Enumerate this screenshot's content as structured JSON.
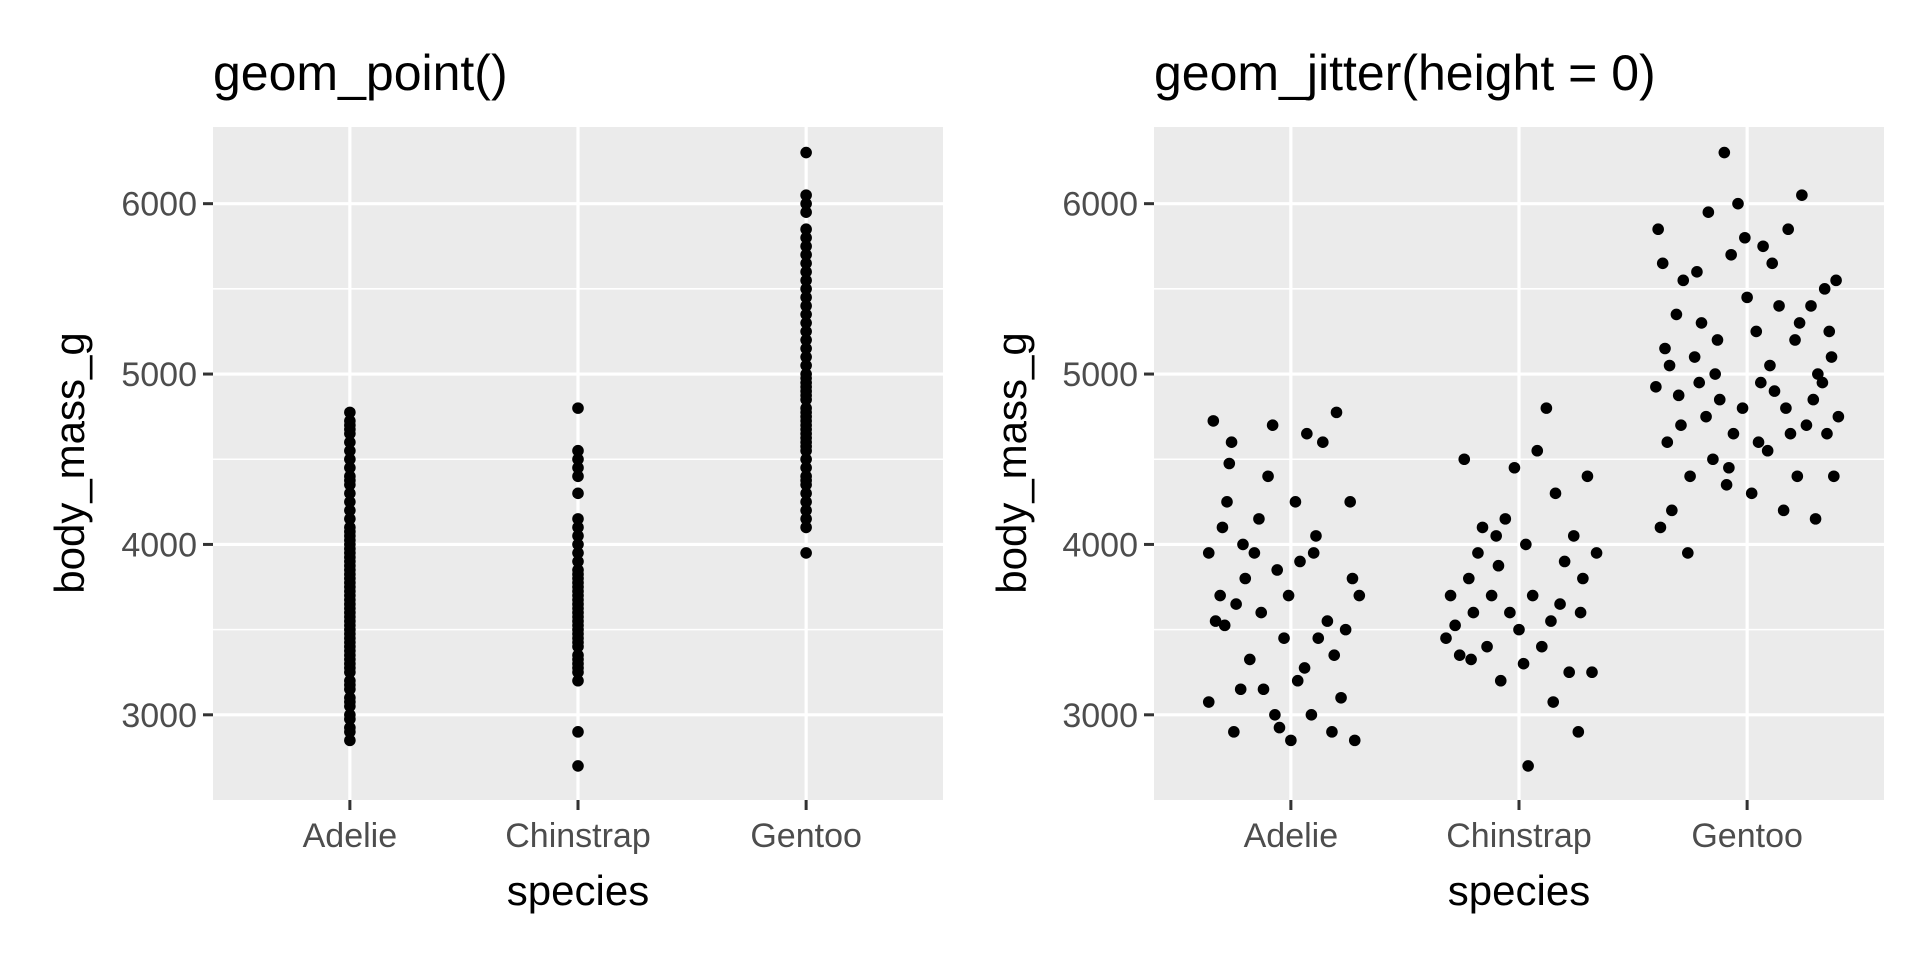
{
  "chart_data": [
    {
      "type": "scatter",
      "title": "geom_point()",
      "xlabel": "species",
      "ylabel": "body_mass_g",
      "categories": [
        "Adelie",
        "Chinstrap",
        "Gentoo"
      ],
      "yticks": [
        3000,
        4000,
        5000,
        6000
      ],
      "ylim": [
        2500,
        6450
      ],
      "grid": true,
      "legend": "none",
      "point_color": "#000000",
      "panel_color": "#ebebeb",
      "points": {
        "Adelie": [
          2850,
          2900,
          2925,
          2975,
          3000,
          3050,
          3075,
          3100,
          3150,
          3175,
          3200,
          3250,
          3275,
          3300,
          3325,
          3350,
          3375,
          3400,
          3425,
          3450,
          3475,
          3500,
          3525,
          3550,
          3575,
          3600,
          3625,
          3650,
          3675,
          3700,
          3725,
          3750,
          3775,
          3800,
          3825,
          3850,
          3875,
          3900,
          3925,
          3950,
          3975,
          4000,
          4025,
          4050,
          4075,
          4100,
          4150,
          4200,
          4250,
          4300,
          4350,
          4375,
          4400,
          4450,
          4500,
          4550,
          4600,
          4650,
          4675,
          4700,
          4725,
          4775
        ],
        "Chinstrap": [
          2700,
          2900,
          3200,
          3250,
          3275,
          3300,
          3325,
          3350,
          3400,
          3425,
          3450,
          3475,
          3500,
          3525,
          3550,
          3575,
          3600,
          3625,
          3650,
          3675,
          3700,
          3725,
          3750,
          3775,
          3800,
          3825,
          3850,
          3900,
          3950,
          4000,
          4050,
          4100,
          4150,
          4300,
          4400,
          4450,
          4500,
          4550,
          4800
        ],
        "Gentoo": [
          3950,
          4100,
          4150,
          4200,
          4250,
          4300,
          4350,
          4375,
          4400,
          4450,
          4500,
          4550,
          4575,
          4600,
          4625,
          4650,
          4675,
          4700,
          4725,
          4750,
          4775,
          4800,
          4850,
          4875,
          4900,
          4925,
          4950,
          4975,
          5000,
          5050,
          5100,
          5150,
          5200,
          5250,
          5300,
          5350,
          5400,
          5450,
          5500,
          5550,
          5600,
          5650,
          5700,
          5750,
          5800,
          5850,
          5950,
          6000,
          6050,
          6300
        ]
      }
    },
    {
      "type": "scatter",
      "title": "geom_jitter(height = 0)",
      "xlabel": "species",
      "ylabel": "body_mass_g",
      "categories": [
        "Adelie",
        "Chinstrap",
        "Gentoo"
      ],
      "yticks": [
        3000,
        4000,
        5000,
        6000
      ],
      "ylim": [
        2500,
        6450
      ],
      "grid": true,
      "legend": "none",
      "point_color": "#000000",
      "panel_color": "#ebebeb",
      "points": [
        {
          "x": 0.64,
          "y": 3950
        },
        {
          "x": 0.66,
          "y": 4725
        },
        {
          "x": 0.64,
          "y": 3075
        },
        {
          "x": 0.67,
          "y": 3550
        },
        {
          "x": 0.69,
          "y": 3700
        },
        {
          "x": 0.7,
          "y": 4100
        },
        {
          "x": 0.72,
          "y": 4250
        },
        {
          "x": 0.74,
          "y": 4600
        },
        {
          "x": 0.73,
          "y": 4475
        },
        {
          "x": 0.75,
          "y": 2900
        },
        {
          "x": 0.76,
          "y": 3650
        },
        {
          "x": 0.78,
          "y": 3150
        },
        {
          "x": 0.8,
          "y": 3800
        },
        {
          "x": 0.82,
          "y": 3325
        },
        {
          "x": 0.84,
          "y": 3950
        },
        {
          "x": 0.86,
          "y": 4150
        },
        {
          "x": 0.88,
          "y": 3150
        },
        {
          "x": 0.9,
          "y": 4400
        },
        {
          "x": 0.92,
          "y": 4700
        },
        {
          "x": 0.93,
          "y": 3000
        },
        {
          "x": 0.95,
          "y": 2925
        },
        {
          "x": 0.97,
          "y": 3450
        },
        {
          "x": 0.99,
          "y": 3700
        },
        {
          "x": 1.0,
          "y": 2850
        },
        {
          "x": 1.02,
          "y": 4250
        },
        {
          "x": 1.04,
          "y": 3900
        },
        {
          "x": 1.06,
          "y": 3275
        },
        {
          "x": 1.07,
          "y": 4650
        },
        {
          "x": 1.09,
          "y": 3000
        },
        {
          "x": 1.1,
          "y": 3950
        },
        {
          "x": 1.12,
          "y": 3450
        },
        {
          "x": 1.14,
          "y": 4600
        },
        {
          "x": 1.16,
          "y": 3550
        },
        {
          "x": 1.18,
          "y": 2900
        },
        {
          "x": 1.2,
          "y": 4775
        },
        {
          "x": 1.22,
          "y": 3100
        },
        {
          "x": 1.24,
          "y": 3500
        },
        {
          "x": 1.26,
          "y": 4250
        },
        {
          "x": 1.28,
          "y": 2850
        },
        {
          "x": 1.3,
          "y": 3700
        },
        {
          "x": 0.71,
          "y": 3525
        },
        {
          "x": 0.79,
          "y": 4000
        },
        {
          "x": 0.87,
          "y": 3600
        },
        {
          "x": 0.94,
          "y": 3850
        },
        {
          "x": 1.03,
          "y": 3200
        },
        {
          "x": 1.11,
          "y": 4050
        },
        {
          "x": 1.19,
          "y": 3350
        },
        {
          "x": 1.27,
          "y": 3800
        },
        {
          "x": 1.68,
          "y": 3450
        },
        {
          "x": 1.7,
          "y": 3700
        },
        {
          "x": 1.72,
          "y": 3525
        },
        {
          "x": 1.74,
          "y": 3350
        },
        {
          "x": 1.76,
          "y": 4500
        },
        {
          "x": 1.78,
          "y": 3800
        },
        {
          "x": 1.8,
          "y": 3600
        },
        {
          "x": 1.82,
          "y": 3950
        },
        {
          "x": 1.84,
          "y": 4100
        },
        {
          "x": 1.86,
          "y": 3400
        },
        {
          "x": 1.88,
          "y": 3700
        },
        {
          "x": 1.9,
          "y": 4050
        },
        {
          "x": 1.92,
          "y": 3200
        },
        {
          "x": 1.94,
          "y": 4150
        },
        {
          "x": 1.96,
          "y": 3600
        },
        {
          "x": 1.98,
          "y": 4450
        },
        {
          "x": 2.0,
          "y": 3500
        },
        {
          "x": 2.02,
          "y": 3300
        },
        {
          "x": 2.04,
          "y": 2700
        },
        {
          "x": 2.06,
          "y": 3700
        },
        {
          "x": 2.08,
          "y": 4550
        },
        {
          "x": 2.1,
          "y": 3400
        },
        {
          "x": 2.12,
          "y": 4800
        },
        {
          "x": 2.14,
          "y": 3550
        },
        {
          "x": 2.16,
          "y": 4300
        },
        {
          "x": 2.18,
          "y": 3650
        },
        {
          "x": 2.2,
          "y": 3900
        },
        {
          "x": 2.22,
          "y": 3250
        },
        {
          "x": 2.24,
          "y": 4050
        },
        {
          "x": 2.26,
          "y": 2900
        },
        {
          "x": 2.28,
          "y": 3800
        },
        {
          "x": 2.3,
          "y": 4400
        },
        {
          "x": 2.32,
          "y": 3250
        },
        {
          "x": 2.34,
          "y": 3950
        },
        {
          "x": 1.79,
          "y": 3325
        },
        {
          "x": 1.91,
          "y": 3875
        },
        {
          "x": 2.03,
          "y": 4000
        },
        {
          "x": 2.15,
          "y": 3075
        },
        {
          "x": 2.27,
          "y": 3600
        },
        {
          "x": 2.6,
          "y": 4925
        },
        {
          "x": 2.61,
          "y": 5850
        },
        {
          "x": 2.62,
          "y": 4100
        },
        {
          "x": 2.63,
          "y": 5650
        },
        {
          "x": 2.65,
          "y": 4600
        },
        {
          "x": 2.66,
          "y": 5050
        },
        {
          "x": 2.67,
          "y": 4200
        },
        {
          "x": 2.69,
          "y": 5350
        },
        {
          "x": 2.71,
          "y": 4700
        },
        {
          "x": 2.72,
          "y": 5550
        },
        {
          "x": 2.74,
          "y": 3950
        },
        {
          "x": 2.75,
          "y": 4400
        },
        {
          "x": 2.77,
          "y": 5100
        },
        {
          "x": 2.79,
          "y": 4950
        },
        {
          "x": 2.8,
          "y": 5300
        },
        {
          "x": 2.82,
          "y": 4750
        },
        {
          "x": 2.83,
          "y": 5950
        },
        {
          "x": 2.85,
          "y": 4500
        },
        {
          "x": 2.87,
          "y": 5200
        },
        {
          "x": 2.88,
          "y": 4850
        },
        {
          "x": 2.9,
          "y": 6300
        },
        {
          "x": 2.91,
          "y": 4350
        },
        {
          "x": 2.93,
          "y": 5700
        },
        {
          "x": 2.94,
          "y": 4650
        },
        {
          "x": 2.96,
          "y": 6000
        },
        {
          "x": 2.98,
          "y": 4800
        },
        {
          "x": 3.0,
          "y": 5450
        },
        {
          "x": 3.02,
          "y": 4300
        },
        {
          "x": 3.04,
          "y": 5250
        },
        {
          "x": 3.06,
          "y": 4950
        },
        {
          "x": 3.07,
          "y": 5750
        },
        {
          "x": 3.09,
          "y": 4550
        },
        {
          "x": 3.11,
          "y": 5650
        },
        {
          "x": 3.12,
          "y": 4900
        },
        {
          "x": 3.14,
          "y": 5400
        },
        {
          "x": 3.16,
          "y": 4200
        },
        {
          "x": 3.18,
          "y": 5850
        },
        {
          "x": 3.19,
          "y": 4650
        },
        {
          "x": 3.21,
          "y": 5200
        },
        {
          "x": 3.22,
          "y": 4400
        },
        {
          "x": 3.24,
          "y": 6050
        },
        {
          "x": 3.26,
          "y": 4700
        },
        {
          "x": 3.28,
          "y": 5400
        },
        {
          "x": 3.3,
          "y": 4150
        },
        {
          "x": 3.31,
          "y": 5000
        },
        {
          "x": 3.33,
          "y": 4950
        },
        {
          "x": 3.34,
          "y": 5500
        },
        {
          "x": 3.35,
          "y": 4650
        },
        {
          "x": 3.37,
          "y": 5100
        },
        {
          "x": 3.38,
          "y": 4400
        },
        {
          "x": 3.39,
          "y": 5550
        },
        {
          "x": 3.4,
          "y": 4750
        },
        {
          "x": 2.64,
          "y": 5150
        },
        {
          "x": 2.7,
          "y": 4875
        },
        {
          "x": 2.78,
          "y": 5600
        },
        {
          "x": 2.86,
          "y": 5000
        },
        {
          "x": 2.92,
          "y": 4450
        },
        {
          "x": 2.99,
          "y": 5800
        },
        {
          "x": 3.05,
          "y": 4600
        },
        {
          "x": 3.1,
          "y": 5050
        },
        {
          "x": 3.17,
          "y": 4800
        },
        {
          "x": 3.23,
          "y": 5300
        },
        {
          "x": 3.29,
          "y": 4850
        },
        {
          "x": 3.36,
          "y": 5250
        }
      ]
    }
  ]
}
